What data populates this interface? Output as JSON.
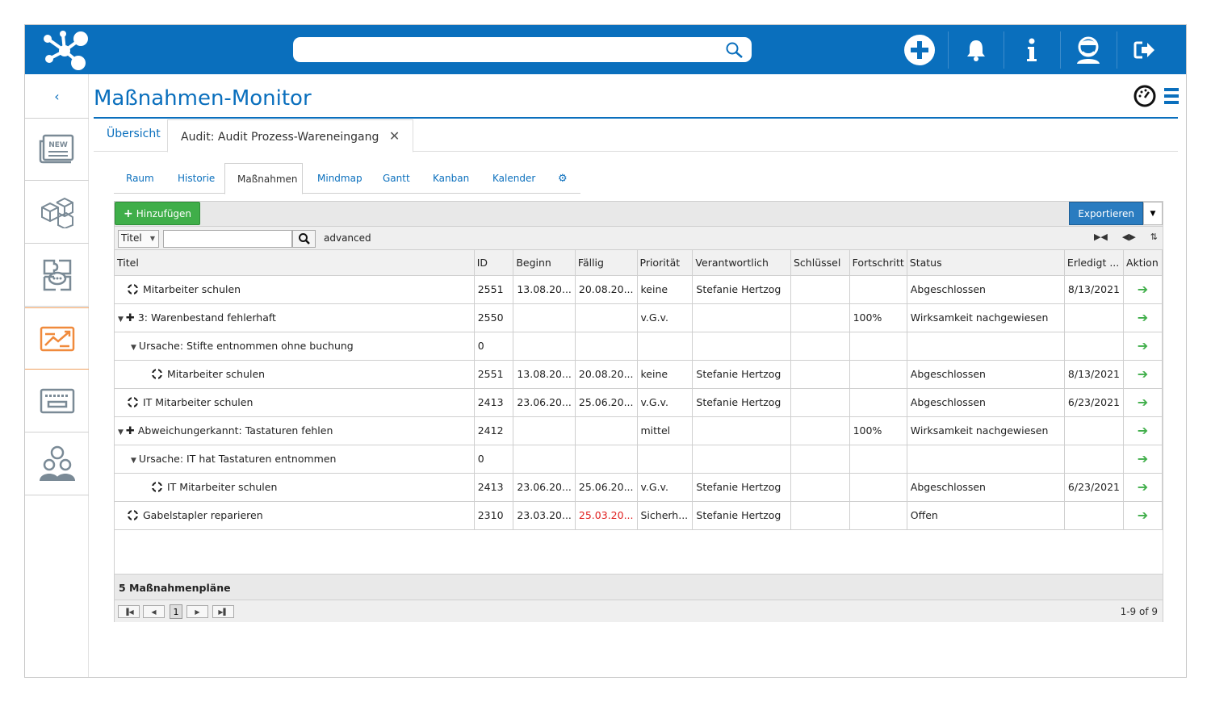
{
  "header": {
    "search_placeholder": "",
    "icons": [
      "plus-circle-icon",
      "bell-icon",
      "info-icon",
      "user-avatar-icon",
      "logout-icon"
    ]
  },
  "sidebar": {
    "back_label": "‹",
    "new_badge": "NEW",
    "items": [
      "news-icon",
      "boxes-icon",
      "chat-puzzle-icon",
      "chart-icon",
      "keyboard-icon",
      "team-icon"
    ]
  },
  "page": {
    "title": "Maßnahmen-Monitor"
  },
  "doc_tabs": [
    {
      "label": "Übersicht"
    },
    {
      "label": "Audit: Audit Prozess-Wareneingang"
    }
  ],
  "sub_tabs": [
    {
      "label": "Raum"
    },
    {
      "label": "Historie"
    },
    {
      "label": "Maßnahmen"
    },
    {
      "label": "Mindmap"
    },
    {
      "label": "Gantt"
    },
    {
      "label": "Kanban"
    },
    {
      "label": "Kalender"
    }
  ],
  "toolbar": {
    "add_label": "Hinzufügen",
    "export_label": "Exportieren"
  },
  "filter": {
    "field": "Titel",
    "value": "",
    "advanced_label": "advanced"
  },
  "table": {
    "columns": [
      "Titel",
      "ID",
      "Beginn",
      "Fällig",
      "Priorität",
      "Verantwortlich",
      "Schlüssel",
      "Fortschritt",
      "Status",
      "Erledigt ...",
      "Aktion"
    ],
    "rows": [
      {
        "title": "Mitarbeiter schulen",
        "id": "2551",
        "begin": "13.08.20...",
        "due": "20.08.20...",
        "prio": "keine",
        "resp": "Stefanie Hertzog",
        "key": "",
        "progress": "",
        "status": "Abgeschlossen",
        "done": "8/13/2021"
      },
      {
        "title": "3: Warenbestand fehlerhaft",
        "id": "2550",
        "begin": "",
        "due": "",
        "prio": "v.G.v.",
        "resp": "",
        "key": "",
        "progress": "100%",
        "status": "Wirksamkeit nachgewiesen",
        "done": ""
      },
      {
        "title": "Ursache: Stifte entnommen ohne buchung",
        "id": "0",
        "begin": "",
        "due": "",
        "prio": "",
        "resp": "",
        "key": "",
        "progress": "",
        "status": "",
        "done": ""
      },
      {
        "title": "Mitarbeiter schulen",
        "id": "2551",
        "begin": "13.08.20...",
        "due": "20.08.20...",
        "prio": "keine",
        "resp": "Stefanie Hertzog",
        "key": "",
        "progress": "",
        "status": "Abgeschlossen",
        "done": "8/13/2021"
      },
      {
        "title": "IT Mitarbeiter schulen",
        "id": "2413",
        "begin": "23.06.20...",
        "due": "25.06.20...",
        "prio": "v.G.v.",
        "resp": "Stefanie Hertzog",
        "key": "",
        "progress": "",
        "status": "Abgeschlossen",
        "done": "6/23/2021"
      },
      {
        "title": "Abweichungerkannt: Tastaturen fehlen",
        "id": "2412",
        "begin": "",
        "due": "",
        "prio": "mittel",
        "resp": "",
        "key": "",
        "progress": "100%",
        "status": "Wirksamkeit nachgewiesen",
        "done": ""
      },
      {
        "title": "Ursache: IT hat Tastaturen entnommen",
        "id": "0",
        "begin": "",
        "due": "",
        "prio": "",
        "resp": "",
        "key": "",
        "progress": "",
        "status": "",
        "done": ""
      },
      {
        "title": "IT Mitarbeiter schulen",
        "id": "2413",
        "begin": "23.06.20...",
        "due": "25.06.20...",
        "prio": "v.G.v.",
        "resp": "Stefanie Hertzog",
        "key": "",
        "progress": "",
        "status": "Abgeschlossen",
        "done": "6/23/2021"
      },
      {
        "title": "Gabelstapler reparieren",
        "id": "2310",
        "begin": "23.03.20...",
        "due": "25.03.20...",
        "prio": "Sicherh...",
        "resp": "Stefanie Hertzog",
        "key": "",
        "progress": "",
        "status": "Offen",
        "done": ""
      }
    ]
  },
  "footer": {
    "summary": "5 Maßnahmenpläne",
    "page": "1",
    "count": "1-9 of 9"
  },
  "colors": {
    "brand": "#0a6fbd",
    "add_green": "#3fae49",
    "overdue_red": "#e02020",
    "accent_orange": "#f08a3c"
  }
}
